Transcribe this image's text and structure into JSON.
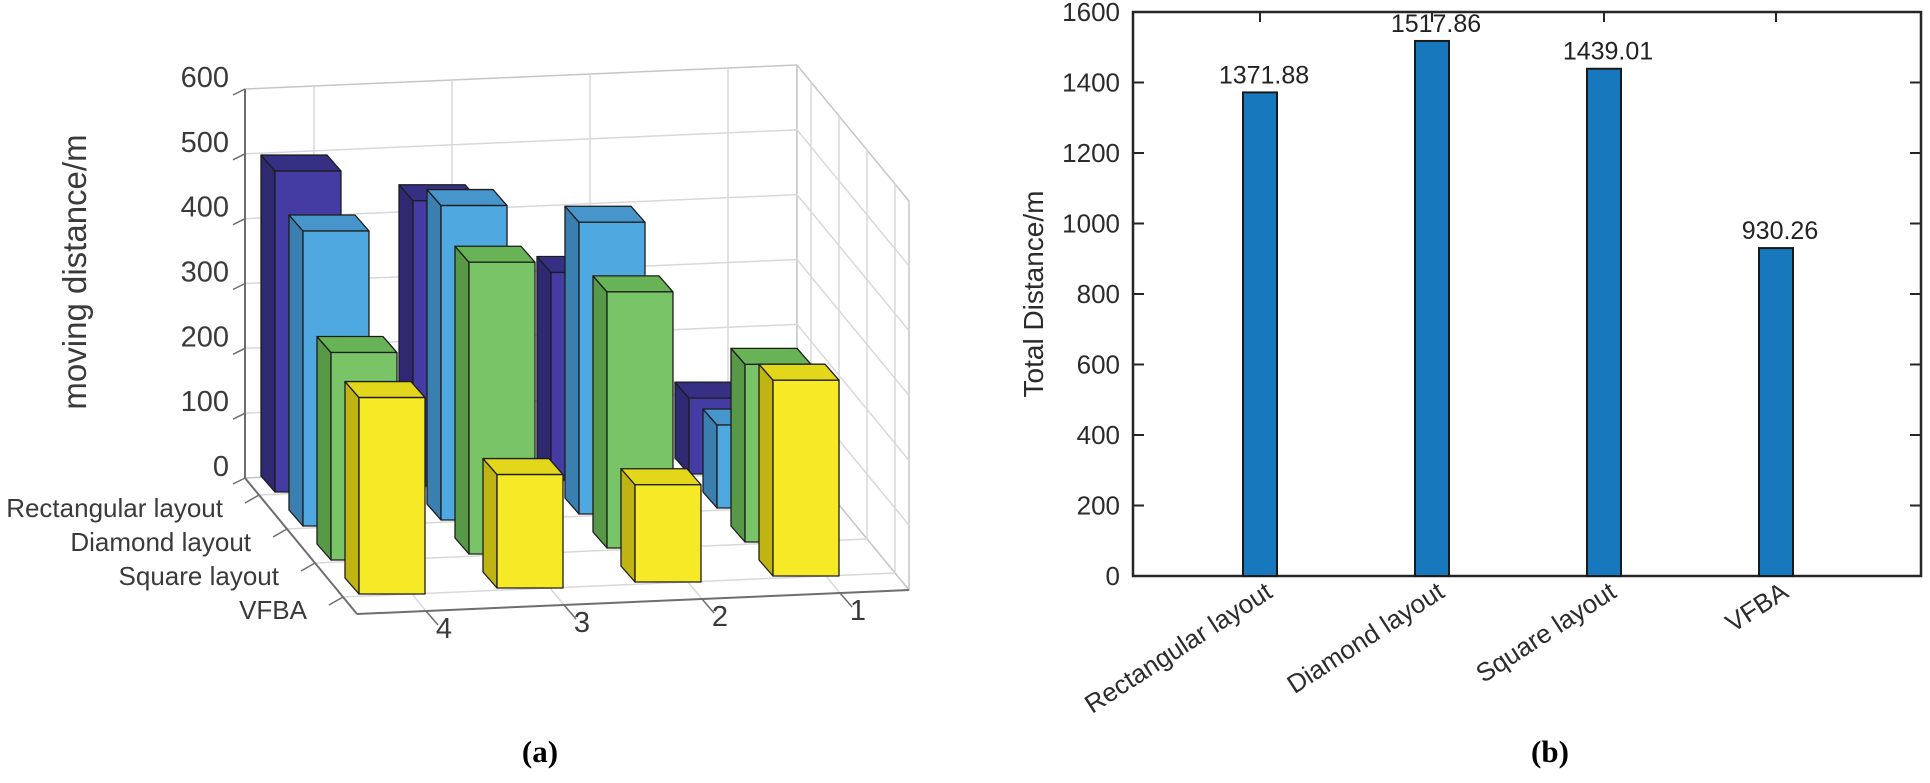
{
  "figure": {
    "caption_a": "(a)",
    "caption_b": "(b)",
    "background": "#ffffff"
  },
  "chart_data": [
    {
      "id": "a",
      "type": "bar",
      "subtype": "bar3d",
      "ylabel": "moving distance/m",
      "ylim": [
        0,
        600
      ],
      "y_ticks": [
        0,
        100,
        200,
        300,
        400,
        500,
        600
      ],
      "x_categories": [
        "4",
        "3",
        "2",
        "1"
      ],
      "series_categories": [
        "Rectangular layout",
        "Diamond layout",
        "Square layout",
        "VFBA"
      ],
      "grid": true,
      "series": [
        {
          "name": "Rectangular layout",
          "values": [
            495,
            440,
            320,
            117
          ],
          "color": {
            "front": "#443CA3",
            "top": "#363085",
            "side": "#2E2971"
          }
        },
        {
          "name": "Diamond layout",
          "values": [
            455,
            485,
            450,
            128
          ],
          "color": {
            "front": "#4FA8DF",
            "top": "#4796CB",
            "side": "#3A7FB0"
          }
        },
        {
          "name": "Square layout",
          "values": [
            320,
            450,
            395,
            274
          ],
          "color": {
            "front": "#78C466",
            "top": "#68B356",
            "side": "#579947"
          }
        },
        {
          "name": "VFBA",
          "values": [
            303,
            175,
            150,
            302
          ],
          "color": {
            "front": "#F6E926",
            "top": "#E3D71C",
            "side": "#C0B414"
          }
        }
      ]
    },
    {
      "id": "b",
      "type": "bar",
      "ylabel": "Total Distance/m",
      "categories": [
        "Rectangular layout",
        "Diamond layout",
        "Square layout",
        "VFBA"
      ],
      "values": [
        1371.88,
        1517.86,
        1439.01,
        930.26
      ],
      "value_labels": [
        "1371.88",
        "1517.86",
        "1439.01",
        "930.26"
      ],
      "ylim": [
        0,
        1600
      ],
      "y_ticks": [
        0,
        200,
        400,
        600,
        800,
        1000,
        1200,
        1400,
        1600
      ],
      "grid": false,
      "legend": "none",
      "bar_color": "#1878BE",
      "bar_edge": "#1a1a1a"
    }
  ]
}
